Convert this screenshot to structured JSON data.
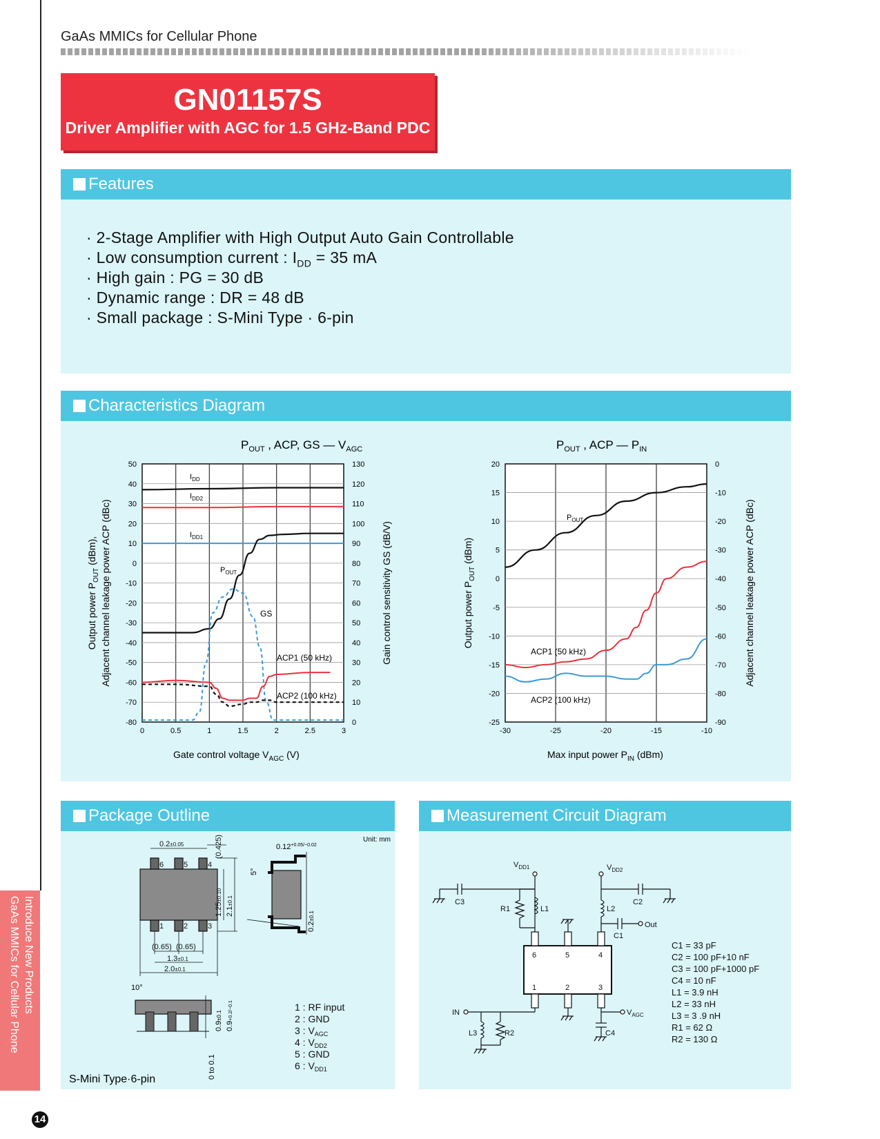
{
  "header": {
    "category": "GaAs MMICs for Cellular Phone"
  },
  "title": {
    "part": "GN01157S",
    "subtitle": "Driver Amplifier with AGC for 1.5 GHz-Band PDC"
  },
  "side_tab": {
    "line1": "Introduce New Products",
    "line2": "GaAs MMICs for Cellular Phone"
  },
  "page_number": "14",
  "features": {
    "heading": "Features",
    "items": [
      "2-Stage Amplifier with High Output Auto Gain Controllable",
      "Low consumption current : I",
      "High gain : PG = 30 dB",
      "Dynamic range : DR = 48 dB",
      "Small package : S-Mini Type · 6-pin"
    ],
    "item2_sub": "DD",
    "item2_tail": " = 35 mA"
  },
  "characteristics": {
    "heading": "Characteristics Diagram",
    "chart_left": {
      "title_main": "P",
      "title_sub": "OUT",
      "title_mid": " , ACP, GS — V",
      "title_sub2": "AGC",
      "xlabel": "Gate control voltage   V",
      "xlabel_sub": "AGC",
      "xlabel_unit": "  (V)",
      "ylabel_line1_a": "Output power   P",
      "ylabel_line1_sub": "OUT",
      "ylabel_line1_b": "  (dBm),",
      "ylabel_line2": "Adjacent channel leakage power   ACP  (dBc)",
      "ylabel_right": "Gain control sensitivity  GS  (dB/V)",
      "x_ticks": [
        "0",
        "0.5",
        "1",
        "1.5",
        "2",
        "2.5",
        "3"
      ],
      "y_left_ticks": [
        "50",
        "40",
        "30",
        "20",
        "10",
        "0",
        "-10",
        "-20",
        "-30",
        "-40",
        "-50",
        "-60",
        "-70",
        "-80"
      ],
      "y_right_ticks": [
        "130",
        "120",
        "110",
        "100",
        "90",
        "80",
        "70",
        "60",
        "50",
        "40",
        "30",
        "20",
        "10",
        "0"
      ],
      "labels": {
        "idd": "I",
        "idd_sub": "DD",
        "idd2": "I",
        "idd2_sub": "DD2",
        "idd1": "I",
        "idd1_sub": "DD1",
        "pout": "P",
        "pout_sub": "OUT",
        "gs": "GS",
        "acp1": "ACP1 (50 kHz)",
        "acp2": "ACP2 (100 kHz)"
      }
    },
    "chart_right": {
      "title_main": "P",
      "title_sub": "OUT",
      "title_mid": " , ACP — P",
      "title_sub2": "IN",
      "xlabel": "Max input power   P",
      "xlabel_sub": "IN",
      "xlabel_unit": "  (dBm)",
      "ylabel_left_a": "Output power   P",
      "ylabel_left_sub": "OUT",
      "ylabel_left_b": "  (dBm)",
      "ylabel_right": "Adjacent channel leakage power   ACP  (dBc)",
      "x_ticks": [
        "-30",
        "-25",
        "-20",
        "-15",
        "-10"
      ],
      "y_left_ticks": [
        "20",
        "15",
        "10",
        "5",
        "0",
        "-5",
        "-10",
        "-15",
        "-20",
        "-25"
      ],
      "y_right_ticks": [
        "0",
        "-10",
        "-20",
        "-30",
        "-40",
        "-50",
        "-60",
        "-70",
        "-80",
        "-90"
      ],
      "labels": {
        "pout": "P",
        "pout_sub": "OUT",
        "acp1": "ACP1 (50 kHz)",
        "acp2": "ACP2 (100 kHz)"
      }
    }
  },
  "chart_data": [
    {
      "type": "line",
      "x_range": [
        0,
        3
      ],
      "y_left_range": [
        -80,
        50
      ],
      "y_right_range": [
        0,
        130
      ],
      "series": [
        {
          "name": "IDD",
          "axis": "right",
          "x": [
            0,
            1,
            2,
            3
          ],
          "y": [
            117,
            117.5,
            118,
            118
          ]
        },
        {
          "name": "IDD2",
          "axis": "right",
          "x": [
            0,
            1,
            2,
            3
          ],
          "y": [
            108,
            108,
            108.5,
            108.5
          ]
        },
        {
          "name": "IDD1",
          "axis": "right",
          "x": [
            0,
            1,
            2,
            3
          ],
          "y": [
            90,
            90,
            90,
            90
          ]
        },
        {
          "name": "POUT",
          "axis": "left",
          "x": [
            0,
            0.5,
            0.75,
            1.0,
            1.15,
            1.3,
            1.45,
            1.6,
            1.75,
            1.9,
            2.1,
            2.5,
            3.0
          ],
          "y": [
            -35,
            -35,
            -35,
            -33,
            -28,
            -18,
            -6,
            5,
            12,
            14,
            14.5,
            15,
            15
          ]
        },
        {
          "name": "GS",
          "axis": "right",
          "x": [
            0,
            0.5,
            0.75,
            0.85,
            0.95,
            1.05,
            1.2,
            1.35,
            1.5,
            1.65,
            1.75,
            1.85,
            1.95,
            2.1,
            3.0
          ],
          "y": [
            1,
            1,
            1,
            5,
            30,
            55,
            63,
            67,
            65,
            53,
            38,
            10,
            1,
            1,
            1
          ]
        },
        {
          "name": "ACP1 (50 kHz)",
          "axis": "left",
          "x": [
            0,
            0.5,
            1.0,
            1.1,
            1.2,
            1.3,
            1.5,
            1.6,
            1.7,
            1.8,
            1.9,
            2.0,
            2.5,
            2.8
          ],
          "y": [
            -60,
            -59,
            -60,
            -63,
            -68,
            -69,
            -69,
            -68,
            -68,
            -62,
            -57,
            -56,
            -55,
            -55
          ]
        },
        {
          "name": "ACP2 (100 kHz)",
          "axis": "left",
          "x": [
            0,
            0.5,
            1.0,
            1.1,
            1.2,
            1.3,
            1.5,
            1.6,
            1.7,
            1.8,
            1.9,
            2.0,
            2.5,
            3.0
          ],
          "y": [
            -61,
            -61,
            -62,
            -66,
            -70,
            -72,
            -71,
            -70,
            -70,
            -69,
            -69,
            -70,
            -70,
            -70
          ]
        }
      ]
    },
    {
      "type": "line",
      "x_range": [
        -30,
        -10
      ],
      "y_left_range": [
        -25,
        20
      ],
      "y_right_range": [
        -90,
        0
      ],
      "series": [
        {
          "name": "POUT",
          "axis": "left",
          "x": [
            -30,
            -27,
            -24,
            -21,
            -18,
            -15,
            -12,
            -10
          ],
          "y": [
            2,
            5,
            8,
            11,
            13.5,
            15,
            16,
            16.5
          ]
        },
        {
          "name": "ACP1 (50 kHz)",
          "axis": "right",
          "x": [
            -30,
            -28,
            -26,
            -24,
            -22,
            -20,
            -18,
            -17,
            -16,
            -15,
            -14,
            -12,
            -10
          ],
          "y": [
            -70,
            -71,
            -70,
            -69,
            -68,
            -65,
            -61,
            -57,
            -51,
            -45,
            -40,
            -36,
            -34
          ]
        },
        {
          "name": "ACP2 (100 kHz)",
          "axis": "right",
          "x": [
            -30,
            -28,
            -26,
            -24,
            -22,
            -20,
            -18,
            -17,
            -16,
            -15,
            -14,
            -12,
            -10
          ],
          "y": [
            -74,
            -76,
            -75,
            -73,
            -74,
            -74,
            -75,
            -75,
            -73,
            -70,
            -70,
            -68,
            -61
          ]
        }
      ]
    }
  ],
  "package": {
    "heading": "Package Outline",
    "unit": "Unit: mm",
    "type": "S-Mini Type·6-pin",
    "pins": [
      "1 : RF input",
      "2 : GND",
      "3 : V",
      "4 : V",
      "5 : GND",
      "6 : V"
    ],
    "pin_subs": {
      "3": "AGC",
      "4": "DD2",
      "6": "DD1"
    },
    "dims": {
      "d_top": "0.2",
      "d_top_tol": "±0.05",
      "d_0425": "(0.425)",
      "d_125": "1.25",
      "d_125_tol": "±0.10",
      "d_21": "2.1",
      "d_21_tol": "±0.1",
      "d_065a": "(0.65)",
      "d_065b": "(0.65)",
      "d_13": "1.3",
      "d_13_tol": "±0.1",
      "d_20": "2.0",
      "d_20_tol": "±0.1",
      "d_012": "0.12",
      "d_012_tol": "+0.05/−0.02",
      "d_5deg": "5°",
      "d_02": "0.2",
      "d_02_tol": "±0.1",
      "d_10deg": "10°",
      "d_09": "0.9",
      "d_09_tol": "±0.1",
      "d_09b": "0.9",
      "d_09b_tol": "+0.2/−0.1",
      "d_0to01": "0 to 0.1"
    },
    "pin_numbers_top": [
      "6",
      "5",
      "4"
    ],
    "pin_numbers_bottom": [
      "1",
      "2",
      "3"
    ]
  },
  "circuit": {
    "heading": "Measurement Circuit Diagram",
    "nodes": {
      "vdd1": "V",
      "vdd1_sub": "DD1",
      "vdd2": "V",
      "vdd2_sub": "DD2",
      "out": "Out",
      "in": "IN",
      "vagc": "V",
      "vagc_sub": "AGC"
    },
    "parts": {
      "c1": "C1",
      "c2": "C2",
      "c3": "C3",
      "c4": "C4",
      "l1": "L1",
      "l2": "L2",
      "l3": "L3",
      "r1": "R1",
      "r2": "R2"
    },
    "ic_pins_top": [
      "6",
      "5",
      "4"
    ],
    "ic_pins_bottom": [
      "1",
      "2",
      "3"
    ],
    "values": [
      "C1 = 33 pF",
      "C2 = 100 pF+10 nF",
      "C3 = 100 pF+1000 pF",
      "C4 = 10 nF",
      "L1 = 3.9 nH",
      "L2 = 33 nH",
      "L3 = 3 .9 nH",
      "R1 = 62 Ω",
      "R2 = 130 Ω"
    ]
  }
}
